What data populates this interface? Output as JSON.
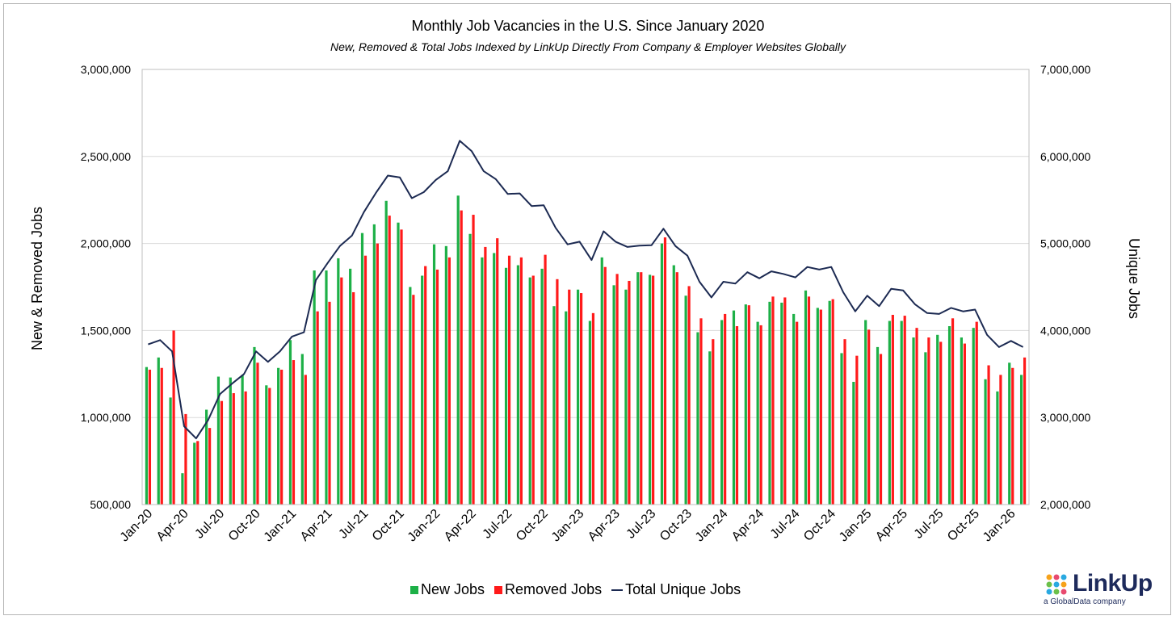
{
  "chart_data": {
    "type": "bar",
    "title": "Monthly Job Vacancies in the U.S. Since January 2020",
    "subtitle": "New, Removed & Total Jobs Indexed by LinkUp Directly From Company & Employer Websites Globally",
    "ylabel_left": "New & Removed Jobs",
    "ylabel_right": "Unique Jobs",
    "ylim_left": [
      500000,
      3000000
    ],
    "ylim_right": [
      2000000,
      7000000
    ],
    "yticks_left": [
      500000,
      1000000,
      1500000,
      2000000,
      2500000,
      3000000
    ],
    "yticks_right": [
      2000000,
      3000000,
      4000000,
      5000000,
      6000000,
      7000000
    ],
    "ytick_labels_left": [
      "500,000",
      "1,000,000",
      "1,500,000",
      "2,000,000",
      "2,500,000",
      "3,000,000"
    ],
    "ytick_labels_right": [
      "2,000,000",
      "3,000,000",
      "4,000,000",
      "5,000,000",
      "6,000,000",
      "7,000,000"
    ],
    "categories": [
      "Jan-20",
      "Feb-20",
      "Mar-20",
      "Apr-20",
      "May-20",
      "Jun-20",
      "Jul-20",
      "Aug-20",
      "Sep-20",
      "Oct-20",
      "Nov-20",
      "Dec-20",
      "Jan-21",
      "Feb-21",
      "Mar-21",
      "Apr-21",
      "May-21",
      "Jun-21",
      "Jul-21",
      "Aug-21",
      "Sep-21",
      "Oct-21",
      "Nov-21",
      "Dec-21",
      "Jan-22",
      "Feb-22",
      "Mar-22",
      "Apr-22",
      "May-22",
      "Jun-22",
      "Jul-22",
      "Aug-22",
      "Sep-22",
      "Oct-22",
      "Nov-22",
      "Dec-22",
      "Jan-23",
      "Feb-23",
      "Mar-23",
      "Apr-23",
      "May-23",
      "Jun-23",
      "Jul-23",
      "Aug-23",
      "Sep-23",
      "Oct-23",
      "Nov-23",
      "Dec-23",
      "Jan-24",
      "Feb-24",
      "Mar-24",
      "Apr-24",
      "May-24",
      "Jun-24",
      "Jul-24",
      "Aug-24",
      "Sep-24",
      "Oct-24",
      "Nov-24",
      "Dec-24",
      "Jan-25",
      "Feb-25",
      "Mar-25",
      "Apr-25",
      "May-25",
      "Jun-25",
      "Jul-25",
      "Aug-25",
      "Sep-25",
      "Oct-25",
      "Nov-25",
      "Dec-25",
      "Jan-26",
      "Feb-26"
    ],
    "tick_labels_shown": [
      "Jan-20",
      "Apr-20",
      "Jul-20",
      "Oct-20",
      "Jan-21",
      "Apr-21",
      "Jul-21",
      "Oct-21",
      "Jan-22",
      "Apr-22",
      "Jul-22",
      "Oct-22",
      "Jan-23",
      "Apr-23",
      "Jul-23",
      "Oct-23",
      "Jan-24",
      "Apr-24",
      "Jul-24",
      "Oct-24",
      "Jan-25",
      "Apr-25",
      "Jul-25",
      "Oct-25",
      "Jan-26"
    ],
    "series": [
      {
        "name": "New Jobs",
        "axis": "left",
        "kind": "bar",
        "color": "#1db047",
        "values": [
          1290000,
          1345000,
          1115000,
          680000,
          855000,
          1045000,
          1235000,
          1230000,
          1245000,
          1405000,
          1185000,
          1285000,
          1445000,
          1365000,
          1845000,
          1845000,
          1915000,
          1855000,
          2060000,
          2110000,
          2245000,
          2120000,
          1750000,
          1815000,
          1995000,
          1985000,
          2275000,
          2055000,
          1920000,
          1945000,
          1860000,
          1875000,
          1805000,
          1855000,
          1640000,
          1610000,
          1735000,
          1555000,
          1920000,
          1760000,
          1735000,
          1835000,
          1820000,
          2000000,
          1875000,
          1700000,
          1490000,
          1380000,
          1560000,
          1615000,
          1650000,
          1550000,
          1665000,
          1660000,
          1595000,
          1730000,
          1630000,
          1670000,
          1370000,
          1205000,
          1560000,
          1405000,
          1555000,
          1555000,
          1460000,
          1375000,
          1475000,
          1525000,
          1460000,
          1515000,
          1220000,
          1150000,
          1315000,
          1245000
        ]
      },
      {
        "name": "Removed Jobs",
        "axis": "left",
        "kind": "bar",
        "color": "#ff1a1a",
        "values": [
          1275000,
          1285000,
          1500000,
          1020000,
          865000,
          940000,
          1095000,
          1140000,
          1150000,
          1315000,
          1170000,
          1275000,
          1330000,
          1245000,
          1610000,
          1665000,
          1805000,
          1720000,
          1930000,
          2000000,
          2160000,
          2080000,
          1705000,
          1870000,
          1850000,
          1920000,
          2190000,
          2165000,
          1980000,
          2030000,
          1930000,
          1920000,
          1815000,
          1935000,
          1795000,
          1735000,
          1715000,
          1600000,
          1865000,
          1825000,
          1785000,
          1835000,
          1815000,
          2035000,
          1835000,
          1755000,
          1570000,
          1450000,
          1595000,
          1525000,
          1645000,
          1530000,
          1695000,
          1690000,
          1550000,
          1695000,
          1620000,
          1680000,
          1450000,
          1355000,
          1505000,
          1365000,
          1590000,
          1585000,
          1515000,
          1460000,
          1435000,
          1570000,
          1425000,
          1550000,
          1300000,
          1245000,
          1285000,
          1345000
        ]
      },
      {
        "name": "Total Unique Jobs",
        "axis": "right",
        "kind": "line",
        "color": "#1c2a52",
        "values": [
          3840000,
          3890000,
          3760000,
          2900000,
          2760000,
          2970000,
          3270000,
          3390000,
          3500000,
          3760000,
          3640000,
          3760000,
          3930000,
          3980000,
          4580000,
          4780000,
          4970000,
          5090000,
          5360000,
          5580000,
          5780000,
          5760000,
          5520000,
          5590000,
          5730000,
          5830000,
          6180000,
          6060000,
          5830000,
          5740000,
          5570000,
          5575000,
          5430000,
          5440000,
          5180000,
          4990000,
          5020000,
          4810000,
          5140000,
          5020000,
          4960000,
          4975000,
          4980000,
          5170000,
          4970000,
          4860000,
          4560000,
          4380000,
          4560000,
          4540000,
          4670000,
          4600000,
          4680000,
          4650000,
          4610000,
          4730000,
          4700000,
          4730000,
          4440000,
          4220000,
          4400000,
          4280000,
          4480000,
          4460000,
          4300000,
          4200000,
          4190000,
          4260000,
          4220000,
          4240000,
          3950000,
          3810000,
          3880000,
          3810000
        ]
      }
    ],
    "legend": [
      "New Jobs",
      "Removed Jobs",
      "Total Unique Jobs"
    ],
    "legend_position": "bottom-center",
    "grid": true
  },
  "logo": {
    "word": "LinkUp",
    "sub": "a GlobalData company"
  }
}
